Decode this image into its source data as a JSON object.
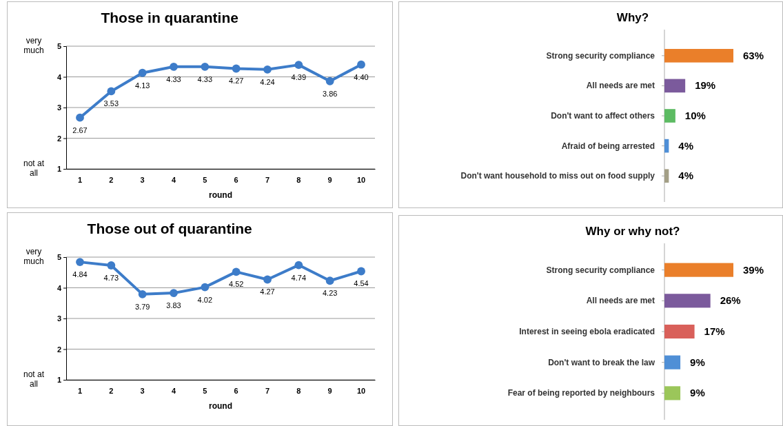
{
  "chart_data": [
    {
      "type": "line",
      "title": "Those in quarantine",
      "xlabel": "round",
      "categories": [
        "1",
        "2",
        "3",
        "4",
        "5",
        "6",
        "7",
        "8",
        "9",
        "10"
      ],
      "series": [
        {
          "color": "#3d7cc9",
          "values": [
            2.67,
            3.53,
            4.13,
            4.33,
            4.33,
            4.27,
            4.24,
            4.39,
            3.86,
            4.4
          ],
          "value_labels": [
            "2.67",
            "3.53",
            "4.13",
            "4.33",
            "4.33",
            "4.27",
            "4.24",
            "4.39",
            "3.86",
            "4.40"
          ]
        }
      ],
      "ylim": [
        1,
        5
      ],
      "yticks": [
        1,
        2,
        3,
        4,
        5
      ],
      "grid": "y",
      "marker": "circle",
      "line_style": "solid",
      "annotations": [
        "very much",
        "not at all"
      ]
    },
    {
      "type": "bar",
      "orientation": "horizontal",
      "title": "Why?",
      "categories": [
        "Strong security compliance",
        "All needs are met",
        "Don't want to affect others",
        "Afraid of being arrested",
        "Don't want household to miss out on food supply"
      ],
      "values": [
        63,
        19,
        10,
        4,
        4
      ],
      "value_labels": [
        "63%",
        "19%",
        "10%",
        "4%",
        "4%"
      ],
      "colors": [
        "#ea7f2a",
        "#7b5a9c",
        "#5dbb63",
        "#4f8fd6",
        "#a39f86"
      ]
    },
    {
      "type": "line",
      "title": "Those out of quarantine",
      "xlabel": "round",
      "categories": [
        "1",
        "2",
        "3",
        "4",
        "5",
        "6",
        "7",
        "8",
        "9",
        "10"
      ],
      "series": [
        {
          "color": "#3d7cc9",
          "values": [
            4.84,
            4.73,
            3.79,
            3.83,
            4.02,
            4.52,
            4.27,
            4.74,
            4.23,
            4.54
          ],
          "value_labels": [
            "4.84",
            "4.73",
            "3.79",
            "3.83",
            "4.02",
            "4.52",
            "4.27",
            "4.74",
            "4.23",
            "4.54"
          ]
        }
      ],
      "ylim": [
        1,
        5
      ],
      "yticks": [
        1,
        2,
        3,
        4,
        5
      ],
      "grid": "y",
      "marker": "circle",
      "line_style": "solid",
      "annotations": [
        "very much",
        "not at all"
      ]
    },
    {
      "type": "bar",
      "orientation": "horizontal",
      "title": "Why or why not?",
      "categories": [
        "Strong security compliance",
        "All needs are met",
        "Interest in seeing ebola eradicated",
        "Don't want to break the law",
        "Fear of being reported by neighbours"
      ],
      "values": [
        39,
        26,
        17,
        9,
        9
      ],
      "value_labels": [
        "39%",
        "26%",
        "17%",
        "9%",
        "9%"
      ],
      "colors": [
        "#ea7f2a",
        "#7b5a9c",
        "#d9605a",
        "#4f8fd6",
        "#9bc65a"
      ]
    }
  ]
}
